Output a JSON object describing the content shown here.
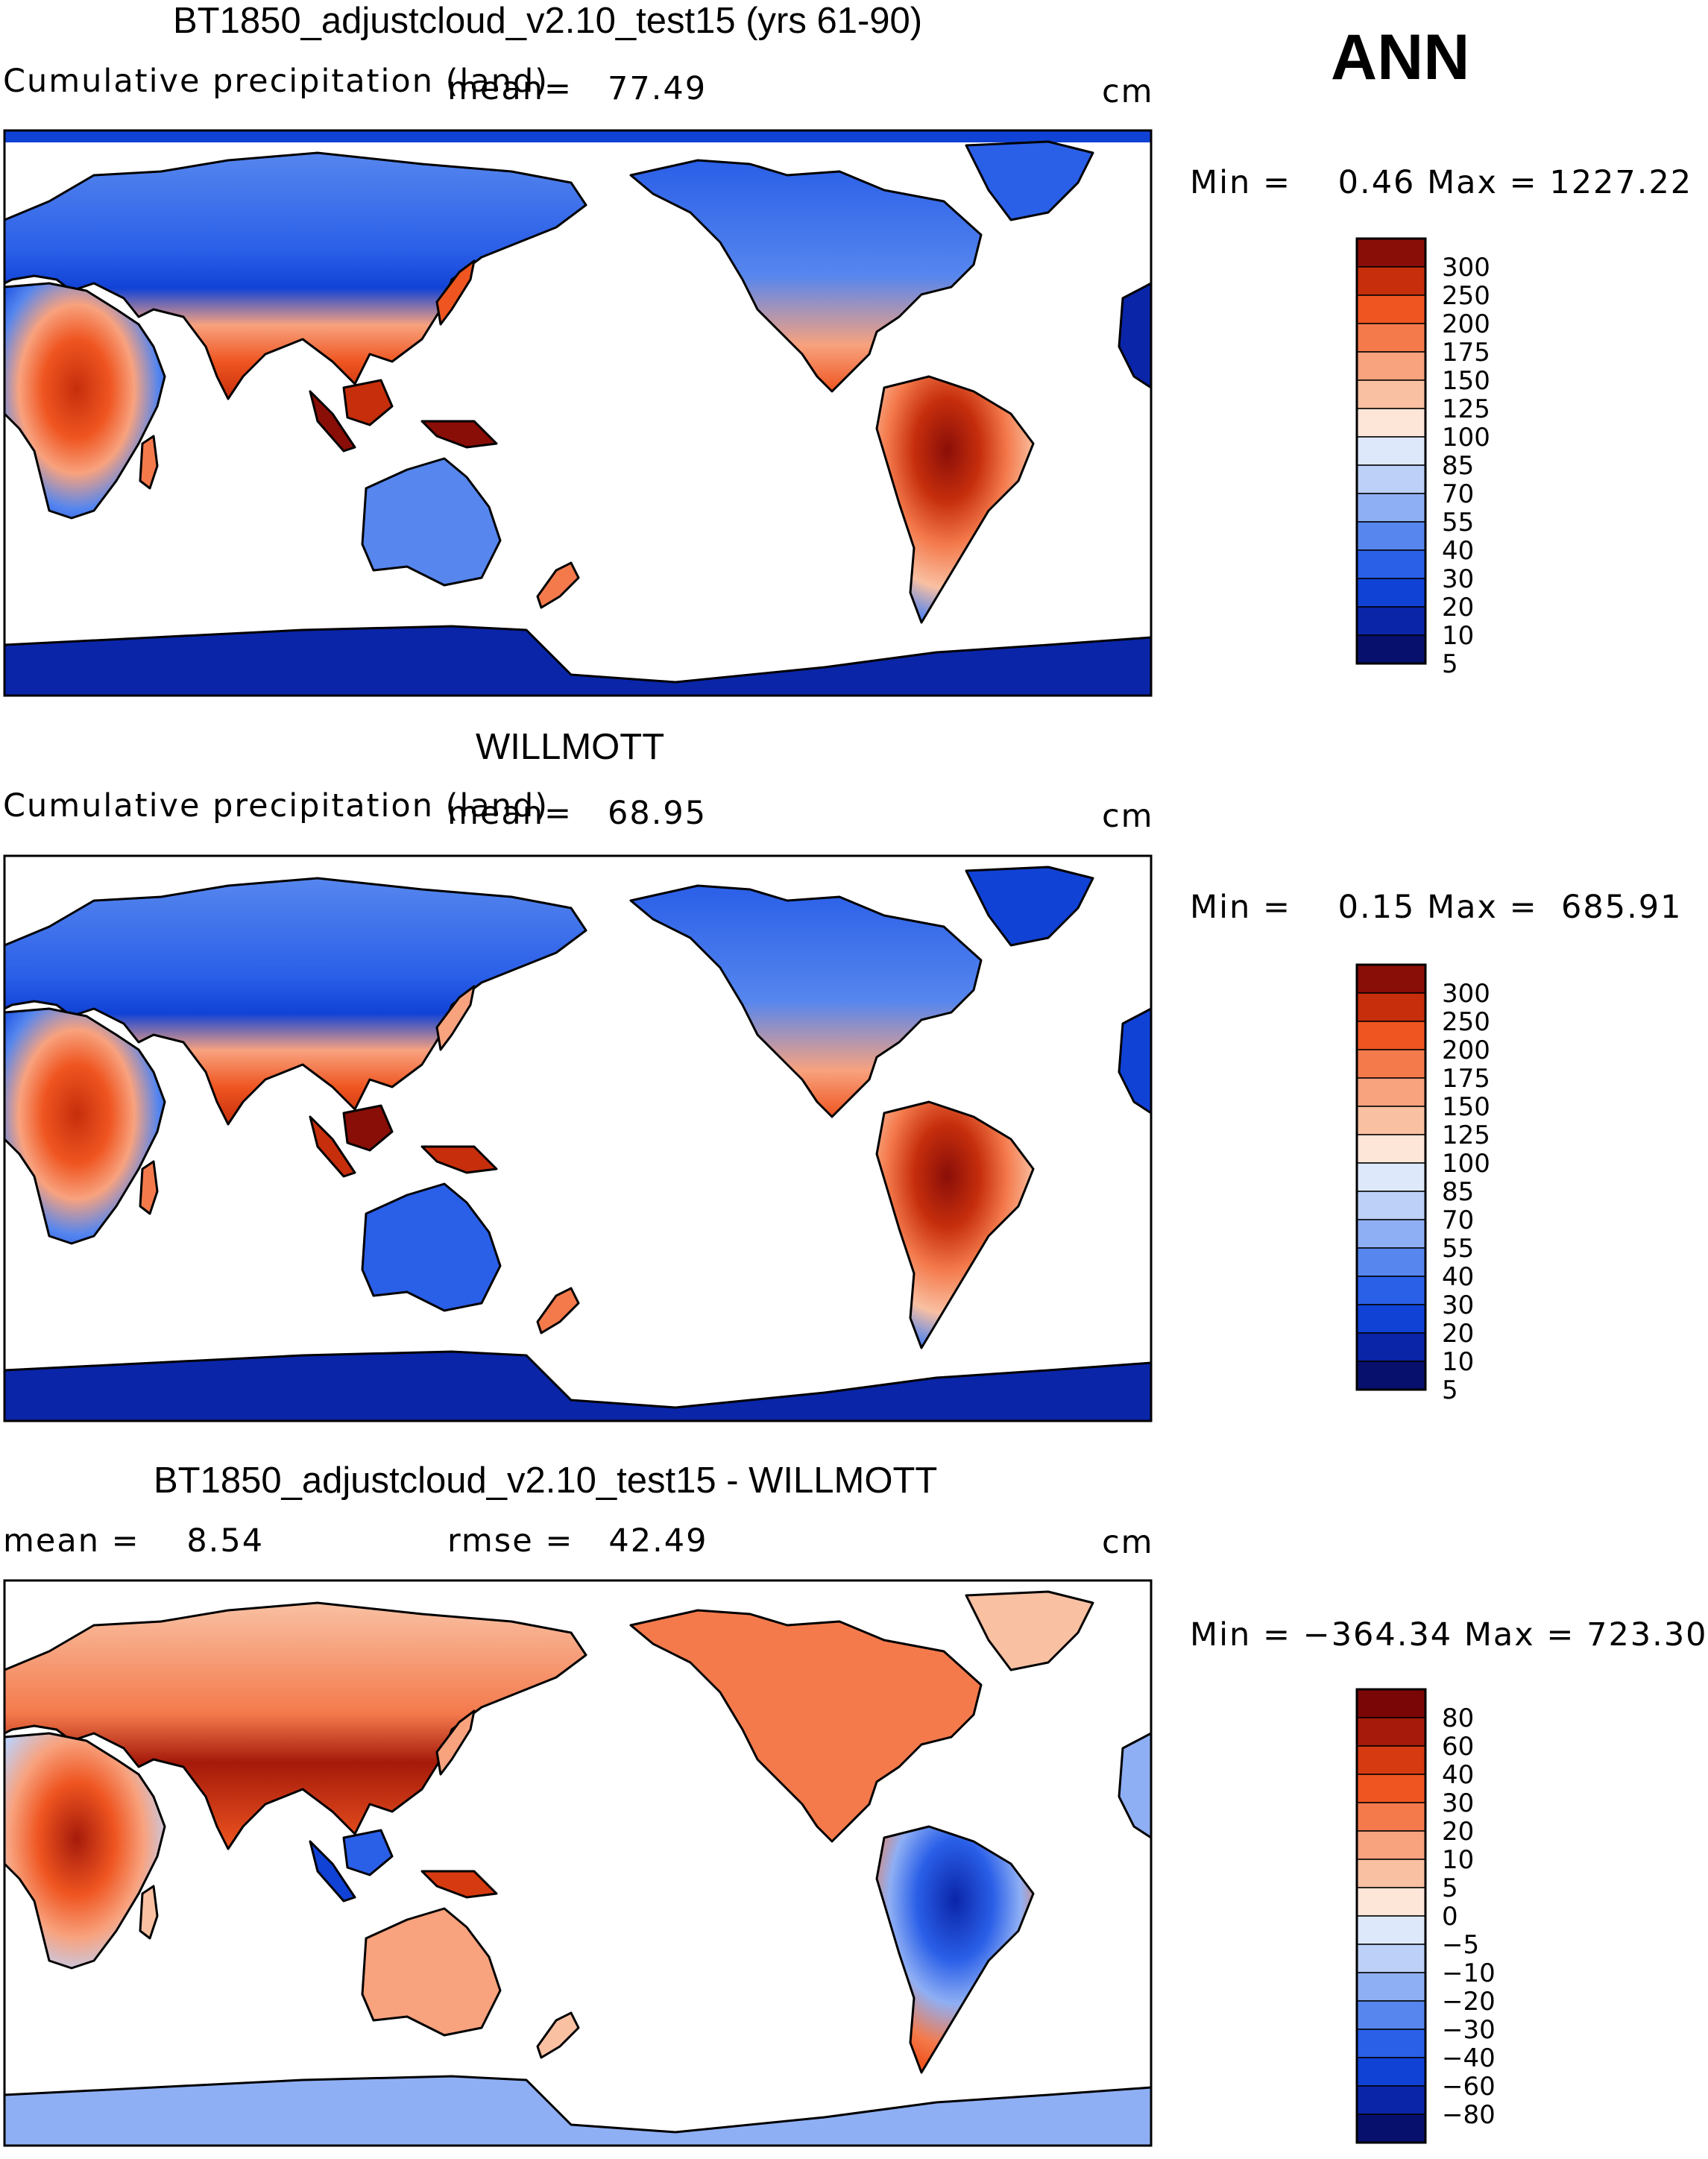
{
  "season": "ANN",
  "colors": {
    "precip_scale": [
      "#08106e",
      "#0a25a8",
      "#1142d6",
      "#2a5fe8",
      "#5686ee",
      "#8faff4",
      "#bdd0f8",
      "#dde9fb",
      "#fde5d8",
      "#f9c0a2",
      "#f8a27e",
      "#f47a4c",
      "#ef5520",
      "#c62e0c",
      "#8a0e08"
    ],
    "diff_scale": [
      "#08106e",
      "#0a25a8",
      "#1142d6",
      "#2a5fe8",
      "#5686ee",
      "#8faff4",
      "#bdd0f8",
      "#dde9fb",
      "#fde5d8",
      "#f9c0a2",
      "#f8a27e",
      "#f47a4c",
      "#ef5520",
      "#d63a10",
      "#a51a0a",
      "#7a0606"
    ]
  },
  "panels": [
    {
      "title": "BT1850_adjustcloud_v2.10_test15 (yrs 61-90)",
      "left_label": "Cumulative precipitation (land)",
      "stat1": "mean=   77.49",
      "stat2": "",
      "units": "cm",
      "minmax": "Min =    0.46 Max = 1227.22",
      "colorbar_labels": [
        "300",
        "250",
        "200",
        "175",
        "150",
        "125",
        "100",
        "85",
        "70",
        "55",
        "40",
        "30",
        "20",
        "10",
        "5"
      ]
    },
    {
      "title": "WILLMOTT",
      "left_label": "Cumulative precipitation (land)",
      "stat1": "mean=   68.95",
      "stat2": "",
      "units": "cm",
      "minmax": "Min =    0.15 Max =  685.91",
      "colorbar_labels": [
        "300",
        "250",
        "200",
        "175",
        "150",
        "125",
        "100",
        "85",
        "70",
        "55",
        "40",
        "30",
        "20",
        "10",
        "5"
      ]
    },
    {
      "title": "BT1850_adjustcloud_v2.10_test15 - WILLMOTT",
      "left_label": "mean =    8.54",
      "stat1": "rmse =   42.49",
      "stat2": "",
      "units": "cm",
      "minmax": "Min = −364.34 Max = 723.30",
      "colorbar_labels": [
        "80",
        "60",
        "40",
        "30",
        "20",
        "10",
        "5",
        "0",
        "−5",
        "−10",
        "−20",
        "−30",
        "−40",
        "−60",
        "−80"
      ]
    }
  ]
}
